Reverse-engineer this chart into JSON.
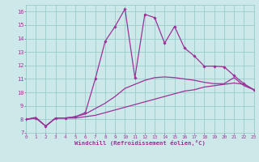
{
  "background_color": "#cce8e8",
  "grid_color": "#99cccc",
  "line_color": "#993399",
  "xlabel": "Windchill (Refroidissement éolien,°C)",
  "xlim": [
    0,
    23
  ],
  "ylim": [
    7,
    16.5
  ],
  "xticks": [
    0,
    1,
    2,
    3,
    4,
    5,
    6,
    7,
    8,
    9,
    10,
    11,
    12,
    13,
    14,
    15,
    16,
    17,
    18,
    19,
    20,
    21,
    22,
    23
  ],
  "yticks": [
    7,
    8,
    9,
    10,
    11,
    12,
    13,
    14,
    15,
    16
  ],
  "series": [
    {
      "x": [
        0,
        1,
        2,
        3,
        4,
        5,
        6,
        7,
        8,
        9,
        10,
        11,
        12,
        13,
        14,
        15,
        16,
        17,
        18,
        19,
        20,
        21,
        22,
        23
      ],
      "y": [
        8.0,
        8.1,
        7.5,
        8.1,
        8.1,
        8.1,
        8.2,
        8.3,
        8.5,
        8.7,
        8.9,
        9.1,
        9.3,
        9.5,
        9.7,
        9.9,
        10.1,
        10.2,
        10.4,
        10.5,
        10.6,
        10.7,
        10.6,
        10.2
      ],
      "marker": false,
      "lw": 0.9
    },
    {
      "x": [
        0,
        1,
        2,
        3,
        4,
        5,
        6,
        7,
        8,
        9,
        10,
        11,
        12,
        13,
        14,
        15,
        16,
        17,
        18,
        19,
        20,
        21,
        22,
        23
      ],
      "y": [
        8.0,
        8.15,
        7.5,
        8.1,
        8.1,
        8.2,
        8.4,
        8.8,
        9.2,
        9.7,
        10.3,
        10.6,
        10.9,
        11.1,
        11.15,
        11.1,
        11.0,
        10.9,
        10.75,
        10.65,
        10.65,
        11.1,
        10.5,
        10.2
      ],
      "marker": false,
      "lw": 0.9
    },
    {
      "x": [
        0,
        1,
        2,
        3,
        4,
        5,
        6,
        7,
        8,
        9,
        10,
        11,
        12,
        13,
        14,
        15,
        16,
        17,
        18,
        19,
        20,
        21,
        22,
        23
      ],
      "y": [
        8.0,
        8.1,
        7.5,
        8.1,
        8.1,
        8.2,
        8.5,
        11.0,
        13.8,
        14.9,
        16.2,
        11.1,
        15.8,
        15.55,
        13.65,
        14.9,
        13.3,
        12.7,
        11.95,
        11.95,
        11.9,
        11.25,
        10.65,
        10.2
      ],
      "marker": true,
      "lw": 0.9
    }
  ]
}
